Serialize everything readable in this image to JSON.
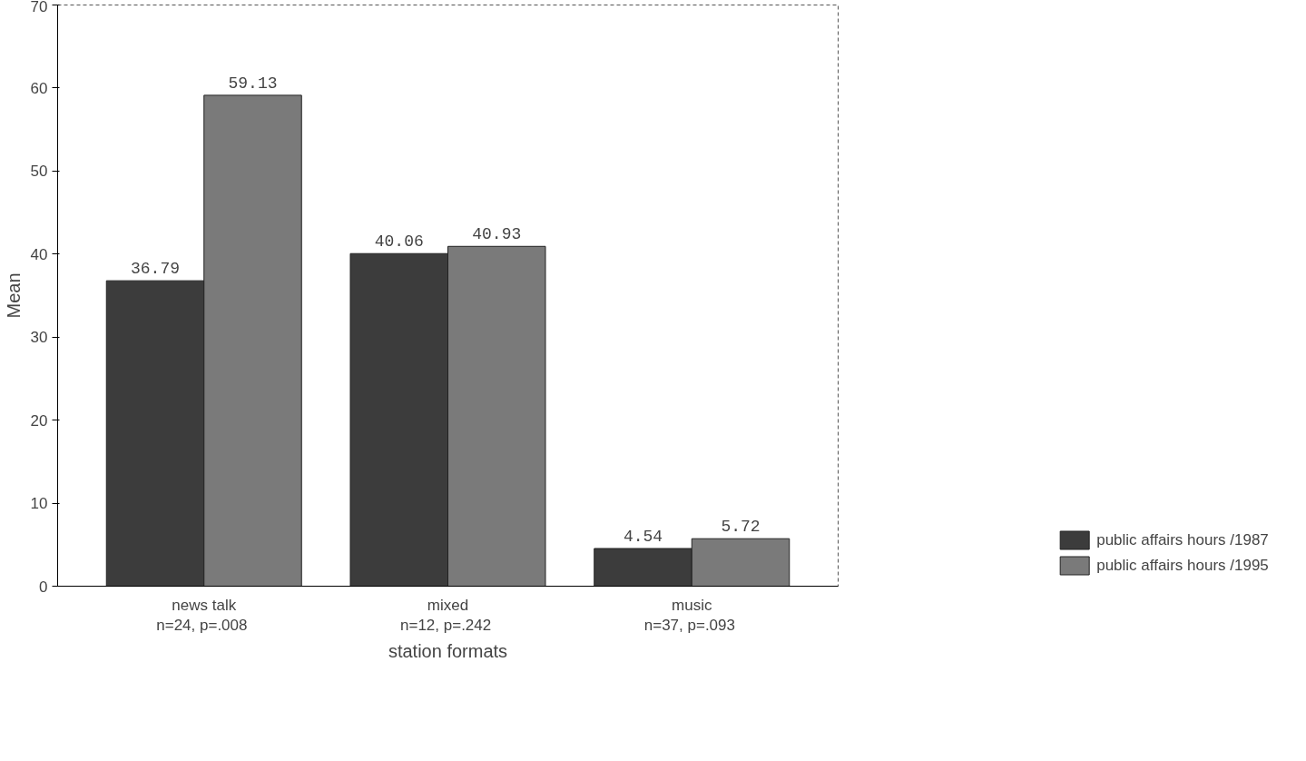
{
  "chart_data": {
    "type": "bar",
    "xlabel": "station formats",
    "ylabel": "Mean",
    "categories": [
      "news talk",
      "mixed",
      "music"
    ],
    "series": [
      {
        "name": "public affairs hours /1987",
        "color": "#3c3c3c",
        "values": [
          36.79,
          40.06,
          4.54
        ]
      },
      {
        "name": "public affairs hours /1995",
        "color": "#7a7a7a",
        "values": [
          59.13,
          40.93,
          5.72
        ]
      }
    ],
    "annotations": [
      "n=24,  p=.008",
      "n=12,  p=.242",
      "n=37,  p=.093"
    ],
    "ylim": [
      0,
      70
    ],
    "yticks": [
      0,
      10,
      20,
      30,
      40,
      50,
      60,
      70
    ],
    "grid": false,
    "legend": "right",
    "data_labels": true
  }
}
